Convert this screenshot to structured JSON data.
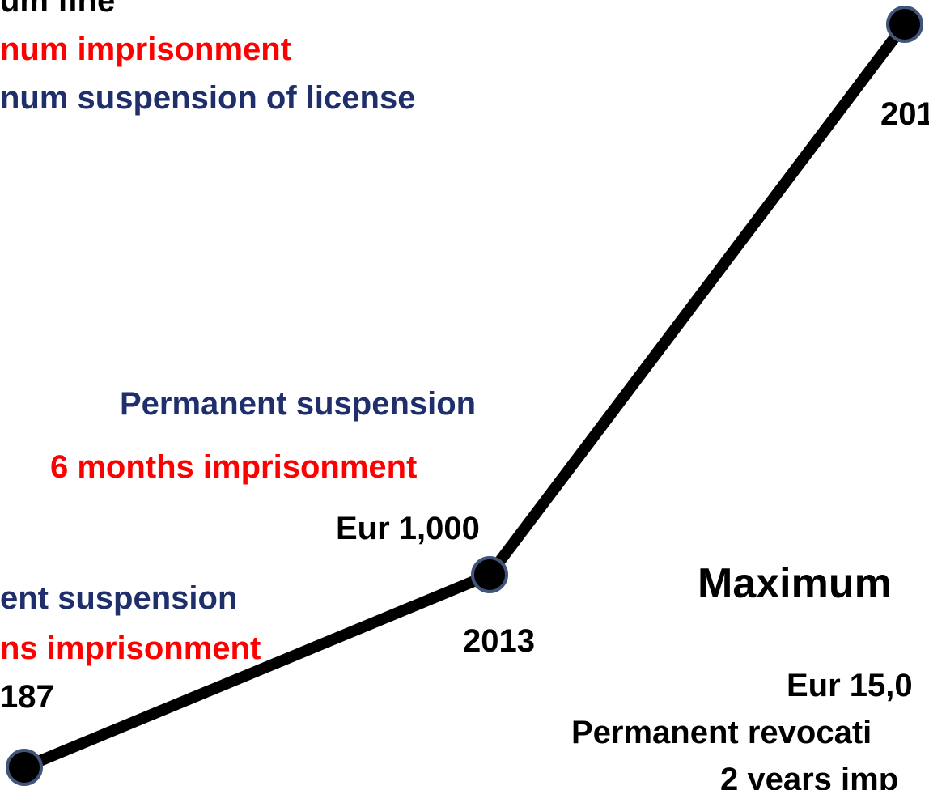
{
  "top_legend": {
    "fine": "um fine",
    "imprisonment": "num imprisonment",
    "suspension": "num suspension of license"
  },
  "points": [
    {
      "year": "187",
      "suspension": "ent suspension",
      "imprisonment": "ns imprisonment"
    },
    {
      "year": "2013",
      "fine": "Eur 1,000",
      "imprisonment": "6 months imprisonment",
      "suspension": "Permanent suspension"
    },
    {
      "year": "201"
    }
  ],
  "maximum": {
    "title": "Maximum",
    "fine": "Eur 15,0",
    "revocation": "Permanent revocati",
    "imprisonment": "2 years imp"
  }
}
